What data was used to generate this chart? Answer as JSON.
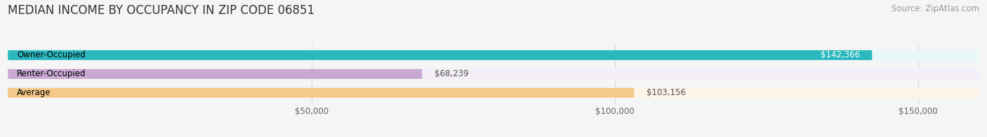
{
  "title": "MEDIAN INCOME BY OCCUPANCY IN ZIP CODE 06851",
  "source": "Source: ZipAtlas.com",
  "categories": [
    "Owner-Occupied",
    "Renter-Occupied",
    "Average"
  ],
  "values": [
    142366,
    68239,
    103156
  ],
  "bar_colors": [
    "#2ab8be",
    "#c9a8d4",
    "#f5c98a"
  ],
  "bar_bg_colors": [
    "#e8f7f8",
    "#f3eef7",
    "#fdf3e7"
  ],
  "value_labels": [
    "$142,366",
    "$68,239",
    "$103,156"
  ],
  "xlim": [
    0,
    160000
  ],
  "xticks": [
    50000,
    100000,
    150000
  ],
  "xticklabels": [
    "$50,000",
    "$100,000",
    "$150,000"
  ],
  "title_fontsize": 12,
  "source_fontsize": 8.5,
  "label_fontsize": 8.5,
  "bar_height": 0.52,
  "background_color": "#f5f5f5"
}
